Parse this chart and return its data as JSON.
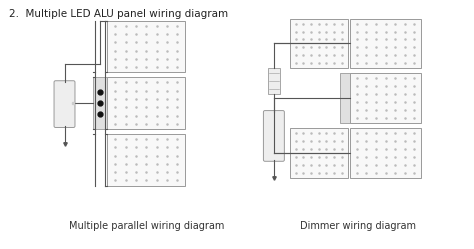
{
  "title": "2.  Multiple LED ALU panel wiring diagram",
  "title_fontsize": 7.5,
  "label_left": "Multiple parallel wiring diagram",
  "label_right": "Dimmer wiring diagram",
  "label_fontsize": 7,
  "bg_color": "#ffffff",
  "panel_color": "#f8f8f8",
  "panel_edge_color": "#999999",
  "wire_color": "#555555",
  "driver_color": "#eeeeee",
  "driver_edge_color": "#999999",
  "dot_color": "#bbbbbb",
  "black_dot_color": "#111111"
}
